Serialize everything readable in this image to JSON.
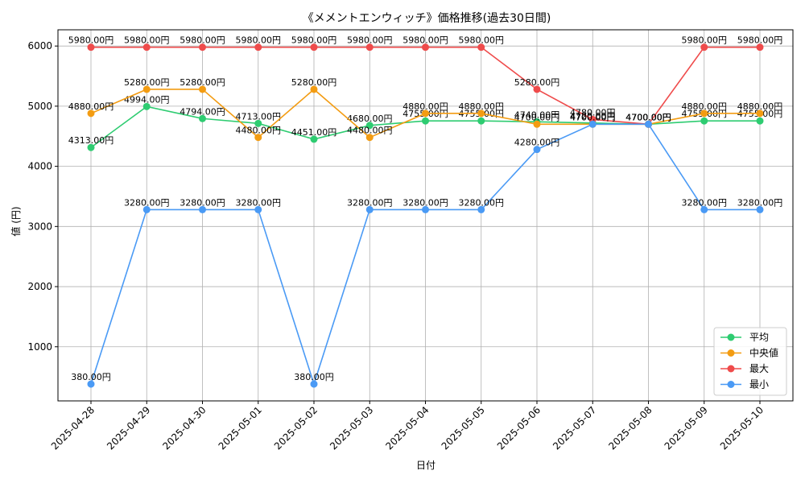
{
  "chart_data": {
    "type": "line",
    "title": "《メメントエンウィッチ》価格推移(過去30日間)",
    "xlabel": "日付",
    "ylabel": "値 (円)",
    "categories": [
      "2025-04-28",
      "2025-04-29",
      "2025-04-30",
      "2025-05-01",
      "2025-05-02",
      "2025-05-03",
      "2025-05-04",
      "2025-05-05",
      "2025-05-06",
      "2025-05-07",
      "2025-05-08",
      "2025-05-09",
      "2025-05-10"
    ],
    "ylim": [
      100,
      6270
    ],
    "yticks": [
      1000,
      2000,
      3000,
      4000,
      5000,
      6000
    ],
    "grid": true,
    "legend_position": "lower-right",
    "series": [
      {
        "name": "平均",
        "color": "#2ecc71",
        "values": [
          4313,
          4994,
          4794,
          4713,
          4451,
          4680,
          4755,
          4755,
          4740,
          4720,
          4700,
          4755,
          4755
        ],
        "labels": [
          "4313.00円",
          "4994.00円",
          "4794.00円",
          "4713.00円",
          "4451.00円",
          "4680.00円",
          "4755.00円",
          "4755.00円",
          "4740.00円",
          "4720.00円",
          "4700.00円",
          "4755.00円",
          "4755.00円"
        ]
      },
      {
        "name": "中央値",
        "color": "#f39c12",
        "values": [
          4880,
          5280,
          5280,
          4480,
          5280,
          4480,
          4880,
          4880,
          4700,
          4700,
          4700,
          4880,
          4880
        ],
        "labels": [
          "4880.00円",
          "5280.00円",
          "5280.00円",
          "4480.00円",
          "5280.00円",
          "4480.00円",
          "4880.00円",
          "4880.00円",
          "4700.00円",
          "4700.00円",
          "4700.00円",
          "4880.00円",
          "4880.00円"
        ]
      },
      {
        "name": "最大",
        "color": "#ef4b4b",
        "values": [
          5980,
          5980,
          5980,
          5980,
          5980,
          5980,
          5980,
          5980,
          5280,
          4780,
          4700,
          5980,
          5980
        ],
        "labels": [
          "5980.00円",
          "5980.00円",
          "5980.00円",
          "5980.00円",
          "5980.00円",
          "5980.00円",
          "5980.00円",
          "5980.00円",
          "5280.00円",
          "4780.00円",
          "4700.00円",
          "5980.00円",
          "5980.00円"
        ]
      },
      {
        "name": "最小",
        "color": "#4a9af5",
        "values": [
          380,
          3280,
          3280,
          3280,
          380,
          3280,
          3280,
          3280,
          4280,
          4700,
          4700,
          3280,
          3280
        ],
        "labels": [
          "380.00円",
          "3280.00円",
          "3280.00円",
          "3280.00円",
          "380.00円",
          "3280.00円",
          "3280.00円",
          "3280.00円",
          "4280.00円",
          "4700.00円",
          "4700.00円",
          "3280.00円",
          "3280.00円"
        ]
      }
    ]
  }
}
